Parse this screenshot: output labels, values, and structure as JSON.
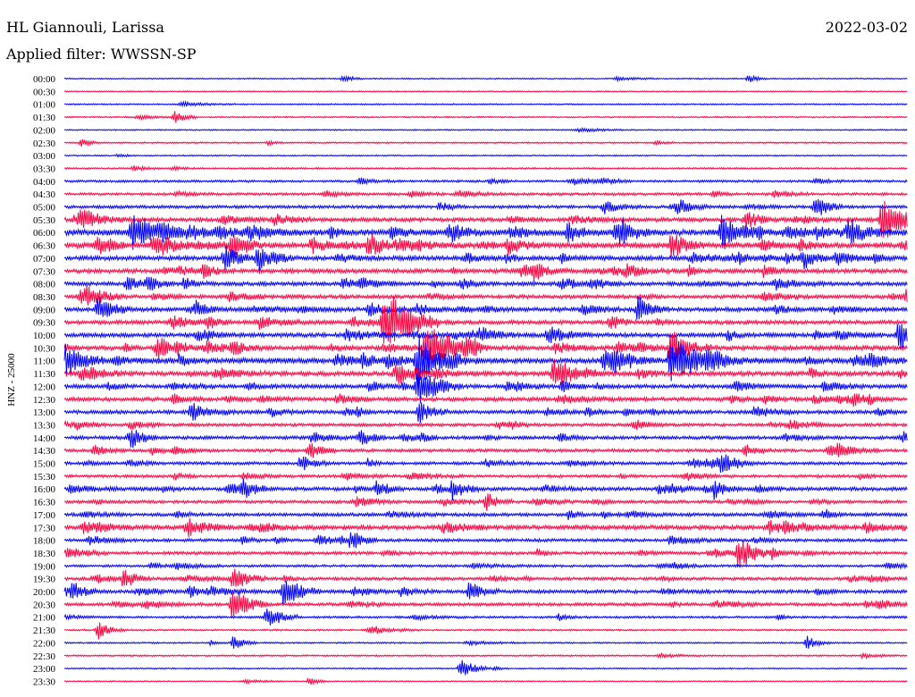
{
  "header": {
    "station": "HL Giannouli, Larissa",
    "date": "2022-03-02",
    "filter": "Applied filter: WWSSN-SP"
  },
  "ylabel": "HNZ - 25000",
  "colors": {
    "trace_a": "#0000ff",
    "trace_b": "#ff0040",
    "background": "#ffffff",
    "text": "#000000"
  },
  "chart_data": {
    "type": "line",
    "title": "HL Giannouli, Larissa",
    "ylabel": "HNZ - 25000",
    "tick_labels": [
      "00:00",
      "00:30",
      "01:00",
      "01:30",
      "02:00",
      "02:30",
      "03:00",
      "03:30",
      "04:00",
      "04:30",
      "05:00",
      "05:30",
      "06:00",
      "06:30",
      "07:00",
      "07:30",
      "08:00",
      "08:30",
      "09:00",
      "09:30",
      "10:00",
      "10:30",
      "11:00",
      "11:30",
      "12:00",
      "12:30",
      "13:00",
      "13:30",
      "14:00",
      "14:30",
      "15:00",
      "15:30",
      "16:00",
      "16:30",
      "17:00",
      "17:30",
      "18:00",
      "18:30",
      "19:00",
      "19:30",
      "20:00",
      "20:30",
      "21:00",
      "21:30",
      "22:00",
      "22:30",
      "23:00",
      "23:30"
    ],
    "activity": [
      0.03,
      0.02,
      0.05,
      0.05,
      0.04,
      0.07,
      0.04,
      0.1,
      0.22,
      0.26,
      0.35,
      0.5,
      0.9,
      0.75,
      0.6,
      0.55,
      0.5,
      0.45,
      0.55,
      0.5,
      0.55,
      0.6,
      0.75,
      0.6,
      0.5,
      0.5,
      0.45,
      0.35,
      0.4,
      0.35,
      0.35,
      0.3,
      0.45,
      0.35,
      0.4,
      0.55,
      0.35,
      0.35,
      0.25,
      0.35,
      0.4,
      0.35,
      0.2,
      0.1,
      0.08,
      0.08,
      0.05,
      0.03
    ],
    "events": [
      {
        "row": 0,
        "frac": 0.33,
        "amp": 5
      },
      {
        "row": 0,
        "frac": 0.81,
        "amp": 5
      },
      {
        "row": 3,
        "frac": 0.13,
        "amp": 8
      },
      {
        "row": 5,
        "frac": 0.02,
        "amp": 5
      },
      {
        "row": 10,
        "frac": 0.89,
        "amp": 10
      },
      {
        "row": 11,
        "frac": 0.97,
        "amp": 25
      },
      {
        "row": 12,
        "frac": 0.08,
        "amp": 14
      },
      {
        "row": 12,
        "frac": 0.66,
        "amp": 12
      },
      {
        "row": 12,
        "frac": 0.78,
        "amp": 20
      },
      {
        "row": 12,
        "frac": 0.93,
        "amp": 14
      },
      {
        "row": 13,
        "frac": 0.2,
        "amp": 14
      },
      {
        "row": 13,
        "frac": 0.36,
        "amp": 14
      },
      {
        "row": 13,
        "frac": 0.72,
        "amp": 14
      },
      {
        "row": 14,
        "frac": 0.19,
        "amp": 14
      },
      {
        "row": 14,
        "frac": 0.23,
        "amp": 16
      },
      {
        "row": 18,
        "frac": 0.04,
        "amp": 14
      },
      {
        "row": 18,
        "frac": 0.68,
        "amp": 14
      },
      {
        "row": 19,
        "frac": 0.38,
        "amp": 40
      },
      {
        "row": 20,
        "frac": 0.99,
        "amp": 18
      },
      {
        "row": 21,
        "frac": 0.11,
        "amp": 14
      },
      {
        "row": 21,
        "frac": 0.43,
        "amp": 30
      },
      {
        "row": 21,
        "frac": 0.72,
        "amp": 20
      },
      {
        "row": 22,
        "frac": 0.0,
        "amp": 20
      },
      {
        "row": 22,
        "frac": 0.42,
        "amp": 22
      },
      {
        "row": 22,
        "frac": 0.64,
        "amp": 14
      },
      {
        "row": 22,
        "frac": 0.72,
        "amp": 22
      },
      {
        "row": 23,
        "frac": 0.58,
        "amp": 16
      },
      {
        "row": 24,
        "frac": 0.42,
        "amp": 22
      },
      {
        "row": 26,
        "frac": 0.15,
        "amp": 12
      },
      {
        "row": 26,
        "frac": 0.42,
        "amp": 12
      },
      {
        "row": 28,
        "frac": 0.08,
        "amp": 10
      },
      {
        "row": 28,
        "frac": 0.35,
        "amp": 10
      },
      {
        "row": 29,
        "frac": 0.29,
        "amp": 10
      },
      {
        "row": 30,
        "frac": 0.28,
        "amp": 10
      },
      {
        "row": 30,
        "frac": 0.78,
        "amp": 10
      },
      {
        "row": 32,
        "frac": 0.21,
        "amp": 10
      },
      {
        "row": 32,
        "frac": 0.37,
        "amp": 10
      },
      {
        "row": 32,
        "frac": 0.46,
        "amp": 10
      },
      {
        "row": 32,
        "frac": 0.77,
        "amp": 10
      },
      {
        "row": 33,
        "frac": 0.5,
        "amp": 10
      },
      {
        "row": 36,
        "frac": 0.34,
        "amp": 10
      },
      {
        "row": 37,
        "frac": 0.8,
        "amp": 18
      },
      {
        "row": 39,
        "frac": 0.07,
        "amp": 10
      },
      {
        "row": 39,
        "frac": 0.2,
        "amp": 14
      },
      {
        "row": 40,
        "frac": 0.01,
        "amp": 10
      },
      {
        "row": 40,
        "frac": 0.26,
        "amp": 18
      },
      {
        "row": 40,
        "frac": 0.48,
        "amp": 12
      },
      {
        "row": 41,
        "frac": 0.2,
        "amp": 16
      },
      {
        "row": 42,
        "frac": 0.24,
        "amp": 14
      },
      {
        "row": 43,
        "frac": 0.04,
        "amp": 10
      },
      {
        "row": 44,
        "frac": 0.2,
        "amp": 8
      },
      {
        "row": 44,
        "frac": 0.88,
        "amp": 8
      },
      {
        "row": 46,
        "frac": 0.47,
        "amp": 12
      },
      {
        "row": 47,
        "frac": 0.29,
        "amp": 5
      }
    ]
  }
}
